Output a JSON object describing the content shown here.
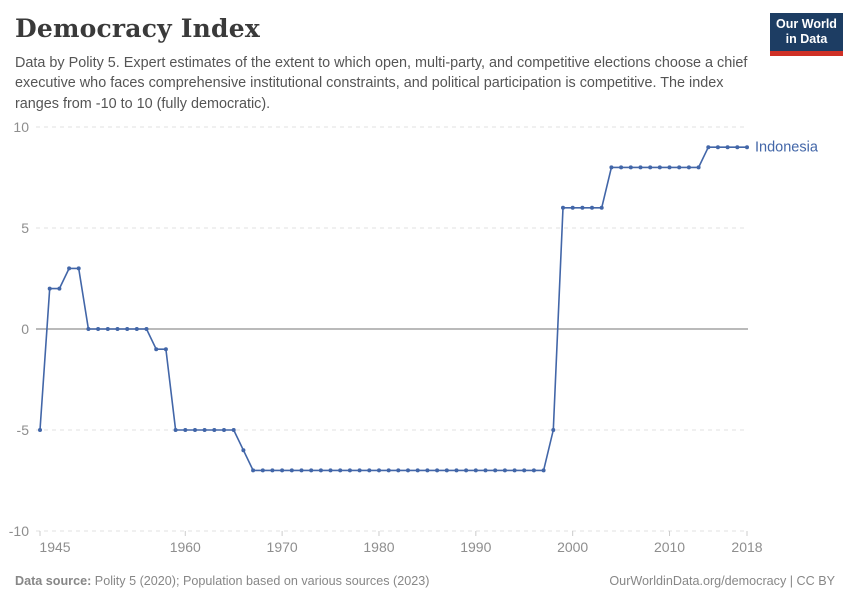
{
  "header": {
    "title": "Democracy Index",
    "subtitle": "Data by Polity 5. Expert estimates of the extent to which open, multi-party, and competitive elections choose a chief executive who faces comprehensive institutional constraints, and political participation is competitive. The index ranges from -10 to 10 (fully democratic).",
    "logo": {
      "line1": "Our World",
      "line2": "in Data",
      "bg_color": "#1d3d63",
      "accent_color": "#cf3026"
    }
  },
  "chart_data": {
    "type": "line",
    "title": "Democracy Index",
    "xlabel": "",
    "ylabel": "",
    "xlim": [
      1945,
      2018
    ],
    "ylim": [
      -10,
      10
    ],
    "x_ticks": [
      1945,
      1960,
      1970,
      1980,
      1990,
      2000,
      2010,
      2018
    ],
    "y_ticks": [
      10,
      5,
      0,
      -5,
      -10
    ],
    "grid": "horizontal-dashed",
    "zero_line": true,
    "legend_position": "end-of-line-label",
    "colors": {
      "line": "#4266a8",
      "grid": "#e2e2e2",
      "zero_line": "#a3a3a3",
      "axis_text": "#8e8e8e"
    },
    "series": [
      {
        "name": "Indonesia",
        "color": "#4266a8",
        "x": [
          1945,
          1946,
          1947,
          1948,
          1949,
          1950,
          1951,
          1952,
          1953,
          1954,
          1955,
          1956,
          1957,
          1958,
          1959,
          1960,
          1961,
          1962,
          1963,
          1964,
          1965,
          1966,
          1967,
          1968,
          1969,
          1970,
          1971,
          1972,
          1973,
          1974,
          1975,
          1976,
          1977,
          1978,
          1979,
          1980,
          1981,
          1982,
          1983,
          1984,
          1985,
          1986,
          1987,
          1988,
          1989,
          1990,
          1991,
          1992,
          1993,
          1994,
          1995,
          1996,
          1997,
          1998,
          1999,
          2000,
          2001,
          2002,
          2003,
          2004,
          2005,
          2006,
          2007,
          2008,
          2009,
          2010,
          2011,
          2012,
          2013,
          2014,
          2015,
          2016,
          2017,
          2018
        ],
        "values": [
          -5,
          2,
          2,
          3,
          3,
          0,
          0,
          0,
          0,
          0,
          0,
          0,
          -1,
          -1,
          -5,
          -5,
          -5,
          -5,
          -5,
          -5,
          -5,
          -6,
          -7,
          -7,
          -7,
          -7,
          -7,
          -7,
          -7,
          -7,
          -7,
          -7,
          -7,
          -7,
          -7,
          -7,
          -7,
          -7,
          -7,
          -7,
          -7,
          -7,
          -7,
          -7,
          -7,
          -7,
          -7,
          -7,
          -7,
          -7,
          -7,
          -7,
          -7,
          -5,
          6,
          6,
          6,
          6,
          6,
          8,
          8,
          8,
          8,
          8,
          8,
          8,
          8,
          8,
          8,
          9,
          9,
          9,
          9,
          9
        ]
      }
    ]
  },
  "footer": {
    "source_label": "Data source:",
    "source_text": " Polity 5 (2020); Population based on various sources (2023)",
    "link_text": "OurWorldinData.org/democracy | CC BY"
  }
}
